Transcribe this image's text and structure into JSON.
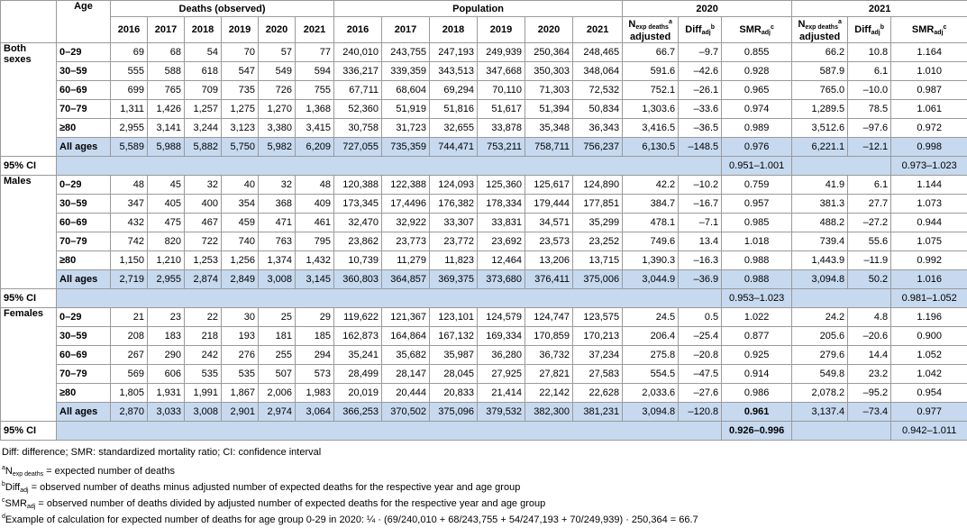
{
  "table": {
    "header": {
      "age": "Age",
      "deaths": "Deaths (observed)",
      "population": "Population",
      "years": [
        "2016",
        "2017",
        "2018",
        "2019",
        "2020",
        "2021"
      ],
      "periods": [
        "2020",
        "2021"
      ],
      "expected": {
        "symbol": "N",
        "sub": "exp deaths",
        "sup": "a",
        "text": "adjusted"
      },
      "diff": {
        "symbol": "Diff",
        "sub": "adj",
        "sup": "b"
      },
      "smr": {
        "symbol": "SMR",
        "sub": "adj",
        "sup": "c"
      }
    },
    "groups": [
      {
        "label": "Both sexes",
        "bold_2020_smr": false,
        "rows": [
          {
            "age": "0–29",
            "cells": [
              "69",
              "68",
              "54",
              "70",
              "57",
              "77",
              "240,010",
              "243,755",
              "247,193",
              "249,939",
              "250,364",
              "248,465",
              "66.7",
              "–9.7",
              "0.855",
              "66.2",
              "10.8",
              "1.164"
            ]
          },
          {
            "age": "30–59",
            "cells": [
              "555",
              "588",
              "618",
              "547",
              "549",
              "594",
              "336,217",
              "339,359",
              "343,513",
              "347,668",
              "350,303",
              "348,064",
              "591.6",
              "–42.6",
              "0.928",
              "587.9",
              "6.1",
              "1.010"
            ]
          },
          {
            "age": "60–69",
            "cells": [
              "699",
              "765",
              "709",
              "735",
              "726",
              "755",
              "67,711",
              "68,604",
              "69,294",
              "70,110",
              "71,303",
              "72,532",
              "752.1",
              "–26.1",
              "0.965",
              "765.0",
              "–10.0",
              "0.987"
            ]
          },
          {
            "age": "70–79",
            "cells": [
              "1,311",
              "1,426",
              "1,257",
              "1,275",
              "1,270",
              "1,368",
              "52,360",
              "51,919",
              "51,816",
              "51,617",
              "51,394",
              "50,834",
              "1,303.6",
              "–33.6",
              "0.974",
              "1,289.5",
              "78.5",
              "1.061"
            ]
          },
          {
            "age": "≥80",
            "cells": [
              "2,955",
              "3,141",
              "3,244",
              "3,123",
              "3,380",
              "3,415",
              "30,758",
              "31,723",
              "32,655",
              "33,878",
              "35,348",
              "36,343",
              "3,416.5",
              "–36.5",
              "0.989",
              "3,512.6",
              "–97.6",
              "0.972"
            ]
          },
          {
            "age": "All ages",
            "cells": [
              "5,589",
              "5,988",
              "5,882",
              "5,750",
              "5,982",
              "6,209",
              "727,055",
              "735,359",
              "744,471",
              "753,211",
              "758,711",
              "756,237",
              "6,130.5",
              "–148.5",
              "0.976",
              "6,221.1",
              "–12.1",
              "0.998"
            ]
          }
        ],
        "ci": {
          "label": "95% CI",
          "values": [
            "0.951–1.001",
            "0.973–1.023"
          ]
        }
      },
      {
        "label": "Males",
        "bold_2020_smr": false,
        "rows": [
          {
            "age": "0–29",
            "cells": [
              "48",
              "45",
              "32",
              "40",
              "32",
              "48",
              "120,388",
              "122,388",
              "124,093",
              "125,360",
              "125,617",
              "124,890",
              "42.2",
              "–10.2",
              "0.759",
              "41.9",
              "6.1",
              "1.144"
            ]
          },
          {
            "age": "30–59",
            "cells": [
              "347",
              "405",
              "400",
              "354",
              "368",
              "409",
              "173,345",
              "17,4496",
              "176,382",
              "178,334",
              "179,444",
              "177,851",
              "384.7",
              "–16.7",
              "0.957",
              "381.3",
              "27.7",
              "1.073"
            ]
          },
          {
            "age": "60–69",
            "cells": [
              "432",
              "475",
              "467",
              "459",
              "471",
              "461",
              "32,470",
              "32,922",
              "33,307",
              "33,831",
              "34,571",
              "35,299",
              "478.1",
              "–7.1",
              "0.985",
              "488.2",
              "–27.2",
              "0.944"
            ]
          },
          {
            "age": "70–79",
            "cells": [
              "742",
              "820",
              "722",
              "740",
              "763",
              "795",
              "23,862",
              "23,773",
              "23,772",
              "23,692",
              "23,573",
              "23,252",
              "749.6",
              "13.4",
              "1.018",
              "739.4",
              "55.6",
              "1.075"
            ]
          },
          {
            "age": "≥80",
            "cells": [
              "1,150",
              "1,210",
              "1,253",
              "1,256",
              "1,374",
              "1,432",
              "10,739",
              "11,279",
              "11,823",
              "12,464",
              "13,206",
              "13,715",
              "1,390.3",
              "–16.3",
              "0.988",
              "1,443.9",
              "–11.9",
              "0.992"
            ]
          },
          {
            "age": "All ages",
            "cells": [
              "2,719",
              "2,955",
              "2,874",
              "2,849",
              "3,008",
              "3,145",
              "360,803",
              "364,857",
              "369,375",
              "373,680",
              "376,411",
              "375,006",
              "3,044.9",
              "–36.9",
              "0.988",
              "3,094.8",
              "50.2",
              "1.016"
            ]
          }
        ],
        "ci": {
          "label": "95% CI",
          "values": [
            "0.953–1.023",
            "0.981–1.052"
          ]
        }
      },
      {
        "label": "Females",
        "bold_2020_smr": true,
        "rows": [
          {
            "age": "0–29",
            "cells": [
              "21",
              "23",
              "22",
              "30",
              "25",
              "29",
              "119,622",
              "121,367",
              "123,101",
              "124,579",
              "124,747",
              "123,575",
              "24.5",
              "0.5",
              "1.022",
              "24.2",
              "4.8",
              "1.196"
            ]
          },
          {
            "age": "30–59",
            "cells": [
              "208",
              "183",
              "218",
              "193",
              "181",
              "185",
              "162,873",
              "164,864",
              "167,132",
              "169,334",
              "170,859",
              "170,213",
              "206.4",
              "–25.4",
              "0.877",
              "205.6",
              "–20.6",
              "0.900"
            ]
          },
          {
            "age": "60–69",
            "cells": [
              "267",
              "290",
              "242",
              "276",
              "255",
              "294",
              "35,241",
              "35,682",
              "35,987",
              "36,280",
              "36,732",
              "37,234",
              "275.8",
              "–20.8",
              "0.925",
              "279.6",
              "14.4",
              "1.052"
            ]
          },
          {
            "age": "70–79",
            "cells": [
              "569",
              "606",
              "535",
              "535",
              "507",
              "573",
              "28,499",
              "28,147",
              "28,045",
              "27,925",
              "27,821",
              "27,583",
              "554.5",
              "–47.5",
              "0.914",
              "549.8",
              "23.2",
              "1.042"
            ]
          },
          {
            "age": "≥80",
            "cells": [
              "1,805",
              "1,931",
              "1,991",
              "1,867",
              "2,006",
              "1,983",
              "20,019",
              "20,444",
              "20,833",
              "21,414",
              "22,142",
              "22,628",
              "2,033.6",
              "–27.6",
              "0.986",
              "2,078.2",
              "–95.2",
              "0.954"
            ]
          },
          {
            "age": "All ages",
            "cells": [
              "2,870",
              "3,033",
              "3,008",
              "2,901",
              "2,974",
              "3,064",
              "366,253",
              "370,502",
              "375,096",
              "379,532",
              "382,300",
              "381,231",
              "3,094.8",
              "–120.8",
              "0.961",
              "3,137.4",
              "–73.4",
              "0.977"
            ]
          }
        ],
        "ci": {
          "label": "95% CI",
          "values": [
            "0.926–0.996",
            "0.942–1.011"
          ]
        }
      }
    ]
  },
  "footnotes": [
    {
      "text": "Diff: difference; SMR: standardized mortality ratio; CI: confidence interval"
    },
    {
      "mark": "a",
      "symbol": "N",
      "sub": "exp deaths",
      "text": " = expected number of deaths"
    },
    {
      "mark": "b",
      "symbol": "Diff",
      "sub": "adj",
      "text": " = observed number of deaths minus adjusted number of expected deaths for the respective year and age group"
    },
    {
      "mark": "c",
      "symbol": "SMR",
      "sub": "adj",
      "text": " = observed number of deaths divided by adjusted number of expected deaths for the respective year and age group"
    },
    {
      "mark": "d",
      "text": "Example of calculation for expected number of deaths for age group 0-29 in 2020: ¼ · (69/240,010 + 68/243,755 + 54/247,193 + 70/249,939) · 250,364 = 66.7"
    }
  ]
}
